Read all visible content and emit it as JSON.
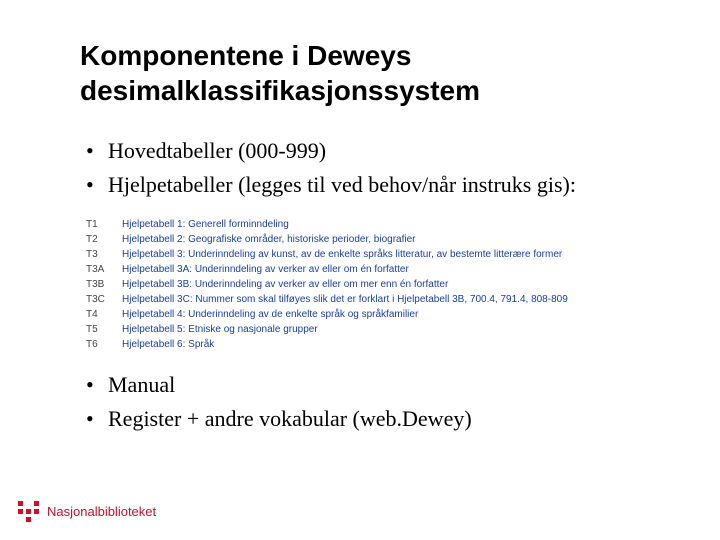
{
  "title": "Komponentene i Deweys desimalklassifikasjonssystem",
  "bullets_top": [
    "Hovedtabeller (000-999)",
    "Hjelpetabeller (legges til ved behov/når instruks gis):"
  ],
  "table": [
    {
      "code": "T1",
      "desc": "Hjelpetabell 1: Generell forminndeling"
    },
    {
      "code": "T2",
      "desc": "Hjelpetabell 2: Geografiske områder, historiske perioder, biografier"
    },
    {
      "code": "T3",
      "desc": "Hjelpetabell 3: Underinndeling av kunst, av de enkelte språks litteratur, av bestemte litterære former"
    },
    {
      "code": "T3A",
      "desc": "Hjelpetabell 3A: Underinndeling av verker av eller om én forfatter"
    },
    {
      "code": "T3B",
      "desc": "Hjelpetabell 3B: Underinndeling av verker av eller om mer enn én forfatter"
    },
    {
      "code": "T3C",
      "desc": "Hjelpetabell 3C: Nummer som skal tilføyes slik det er forklart i Hjelpetabell 3B, 700.4, 791.4, 808-809"
    },
    {
      "code": "T4",
      "desc": "Hjelpetabell 4: Underinndeling av de enkelte språk og språkfamilier"
    },
    {
      "code": "T5",
      "desc": "Hjelpetabell 5: Etniske og nasjonale grupper"
    },
    {
      "code": "T6",
      "desc": "Hjelpetabell 6: Språk"
    }
  ],
  "bullets_bottom": [
    "Manual",
    "Register + andre vokabular (web.Dewey)"
  ],
  "logo_text": "Nasjonalbiblioteket",
  "colors": {
    "link": "#1a3f9c",
    "brand": "#c4122f",
    "text": "#000000",
    "bg": "#ffffff"
  }
}
